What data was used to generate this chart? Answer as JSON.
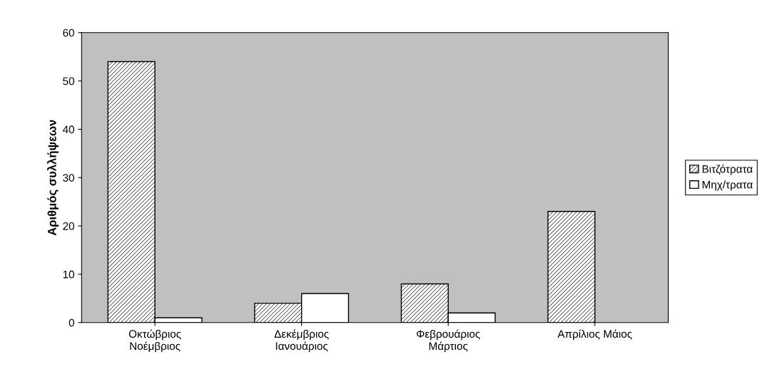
{
  "chart_data": {
    "type": "bar",
    "ylabel": "Αριθμός συλλήψεων",
    "categories": [
      "Οκτώβριος\nΝοέμβριος",
      "Δεκέμβριος\nΙανουάριος",
      "Φεβρουάριος\nΜάρτιος",
      "Απρίλιος Μάιος"
    ],
    "series": [
      {
        "name": "Βιτζότρατα",
        "color": "#000000",
        "values": [
          54,
          4,
          8,
          23
        ]
      },
      {
        "name": "Μηχ/τρατα",
        "color": "#ffffff",
        "values": [
          1,
          6,
          2,
          null
        ]
      }
    ],
    "ylim": [
      0,
      60
    ],
    "yticks": [
      0,
      10,
      20,
      30,
      40,
      50,
      60
    ],
    "grid": false,
    "legend": "right"
  }
}
